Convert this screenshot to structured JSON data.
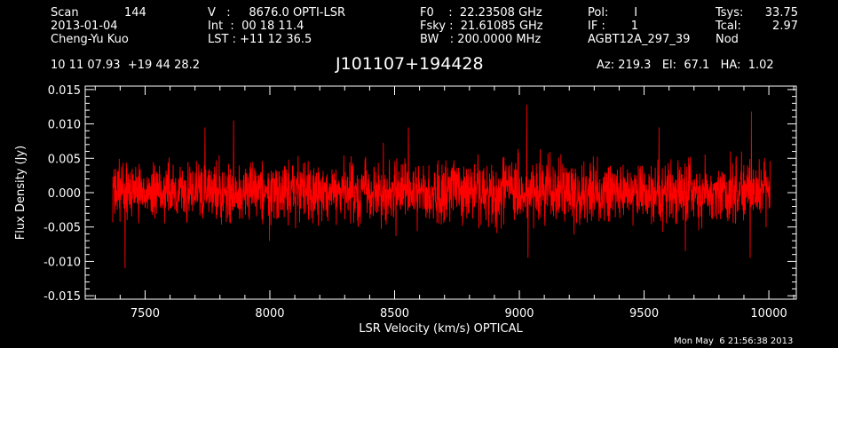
{
  "header": {
    "col1": [
      "Scan",
      "2013-01-04",
      "Cheng-Yu Kuo"
    ],
    "scan_number": "144",
    "col2": [
      "V   :     8676.0 OPTI-LSR",
      "Int  :  00 18 11.4",
      "LST : +11 12 36.5"
    ],
    "col3": [
      "F0    :  22.23508 GHz",
      "Fsky :  21.61085 GHz",
      "BW   : 200.0000 MHz"
    ],
    "col4": [
      "Pol:       I",
      "IF :       1",
      "AGBT12A_297_39"
    ],
    "col5": [
      "Tsys:",
      "Tcal:",
      "Nod"
    ],
    "col5_values": [
      "33.75",
      "2.97",
      ""
    ]
  },
  "coords": "10 11 07.93  +19 44 28.2",
  "source_name": "J101107+194428",
  "pointing": "Az: 219.3   El:  67.1   HA:  1.02",
  "timestamp": "Mon May  6 21:56:38 2013",
  "colors": {
    "background": "#000000",
    "foreground": "#ffffff",
    "series": "#ff0000"
  },
  "chart_data": {
    "type": "line",
    "xlabel": "LSR Velocity (km/s) OPTICAL",
    "ylabel": "Flux Density (Jy)",
    "xlim": [
      7260,
      10110
    ],
    "ylim": [
      -0.0155,
      0.0155
    ],
    "x_ticks": [
      7500,
      8000,
      8500,
      9000,
      9500,
      10000
    ],
    "x_tick_labels": [
      "7500",
      "8000",
      "8500",
      "9000",
      "9500",
      "10000"
    ],
    "y_ticks": [
      0.015,
      0.01,
      0.005,
      0.0,
      -0.005,
      -0.01,
      -0.015
    ],
    "y_tick_labels": [
      "0.015",
      "0.010",
      "0.005",
      "0.000",
      "-0.005",
      "-0.010",
      "-0.015"
    ],
    "grid": false,
    "series": [
      {
        "x_range": [
          7370,
          10005
        ],
        "mean": 0.0,
        "rms": 0.0028,
        "points": 2600,
        "peaks": [
          {
            "x": 7420,
            "y": -0.011
          },
          {
            "x": 7740,
            "y": 0.0095
          },
          {
            "x": 7855,
            "y": 0.0105
          },
          {
            "x": 8555,
            "y": 0.0095
          },
          {
            "x": 9030,
            "y": 0.0128
          },
          {
            "x": 9035,
            "y": -0.0095
          },
          {
            "x": 9560,
            "y": 0.0095
          },
          {
            "x": 9665,
            "y": -0.0085
          },
          {
            "x": 9930,
            "y": 0.0118
          },
          {
            "x": 9925,
            "y": -0.0095
          }
        ]
      }
    ]
  }
}
